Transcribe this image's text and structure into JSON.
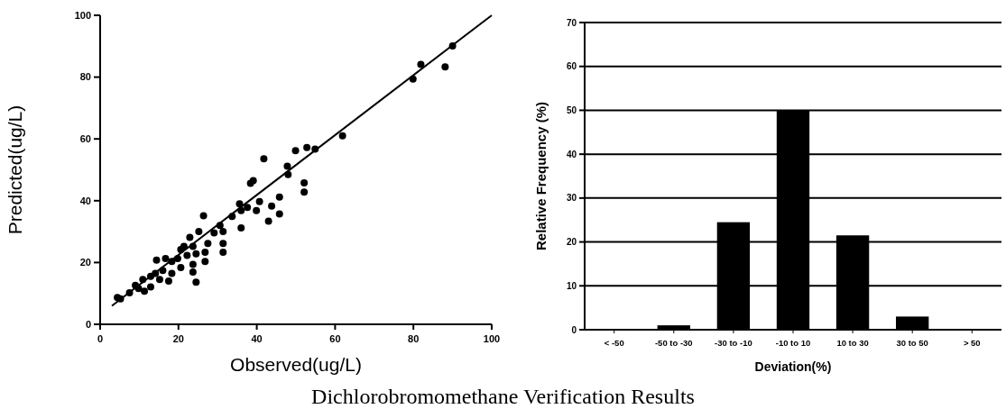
{
  "chart_data": [
    {
      "type": "scatter",
      "title": "Dichlorobromomethane Verification Results",
      "xlabel": "Observed(ug/L)",
      "ylabel": "Predicted(ug/L)",
      "xlim": [
        0,
        100
      ],
      "ylim": [
        0,
        100
      ],
      "xticks": [
        0,
        20,
        40,
        60,
        80,
        100
      ],
      "yticks": [
        0,
        20,
        40,
        60,
        80,
        100
      ],
      "grid": false,
      "series": [
        {
          "color": "#000000",
          "marker": "circle",
          "x": [
            90.0,
            81.9,
            88.1,
            79.9,
            61.9,
            54.9,
            52.8,
            49.9,
            41.8,
            47.8,
            48.0,
            52.1,
            52.1,
            39.1,
            38.4,
            45.8,
            45.8,
            43.0,
            43.8,
            40.7,
            39.9,
            35.6,
            36.0,
            26.4,
            31.4,
            31.4,
            24.5,
            5.2,
            4.4,
            7.5,
            9.8,
            10.9,
            12.9,
            14.1,
            14.4,
            16.0,
            17.5,
            18.3,
            20.6,
            20.6,
            22.2,
            23.7,
            22.9,
            25.2,
            23.7,
            23.7,
            26.8,
            27.5,
            29.1,
            30.6,
            31.4,
            33.7,
            36.0,
            37.6,
            16.7,
            18.3,
            9.0,
            11.3,
            12.9,
            15.2,
            19.8,
            21.4,
            24.5,
            26.8
          ],
          "values": [
            90.1,
            84.1,
            83.3,
            79.4,
            61.0,
            56.7,
            57.2,
            56.2,
            53.6,
            51.2,
            48.5,
            45.8,
            42.8,
            46.5,
            45.6,
            41.2,
            35.7,
            33.4,
            38.3,
            39.7,
            36.8,
            39.0,
            31.2,
            35.1,
            26.2,
            23.3,
            13.6,
            8.2,
            8.7,
            10.2,
            11.6,
            14.5,
            12.1,
            16.5,
            20.8,
            17.4,
            14.0,
            20.3,
            24.2,
            18.4,
            22.3,
            25.2,
            28.1,
            30.0,
            19.4,
            16.9,
            23.3,
            26.2,
            29.6,
            32.0,
            30.0,
            34.9,
            36.8,
            37.8,
            21.3,
            16.5,
            12.6,
            10.7,
            15.5,
            14.5,
            21.3,
            25.2,
            22.8,
            20.3
          ]
        },
        {
          "type": "line",
          "color": "#000000",
          "x": [
            3,
            100
          ],
          "values": [
            6,
            100
          ]
        }
      ]
    },
    {
      "type": "bar",
      "xlabel": "Deviation(%)",
      "ylabel": "Relative Frequency (%)",
      "categories": [
        "< -50",
        "-50 to -30",
        "-30 to -10",
        "-10 to 10",
        "10 to 30",
        "30 to 50",
        "> 50"
      ],
      "values": [
        0,
        1,
        24.5,
        50,
        21.5,
        3,
        0
      ],
      "color": "#000000",
      "ylim": [
        0,
        70
      ],
      "yticks": [
        0,
        10,
        20,
        30,
        40,
        50,
        60,
        70
      ],
      "grid": "y"
    }
  ]
}
